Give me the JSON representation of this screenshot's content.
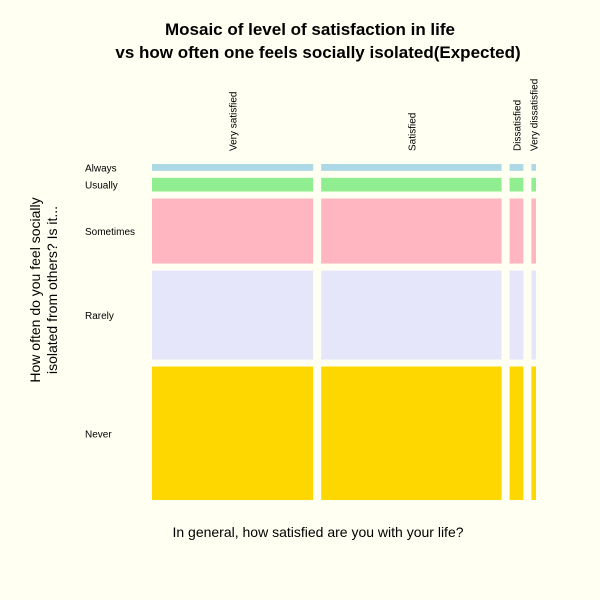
{
  "chart_data": {
    "type": "mosaic",
    "title": "Mosaic of level of satisfaction in life",
    "subtitle": "vs how often one feels socially isolated(Expected)",
    "xlabel": "In general, how satisfied are you with your life?",
    "ylabel_line1": "How often do you feel socially",
    "ylabel_line2": "isolated from others?  Is it...",
    "columns": [
      "Very satisfied",
      "Satisfied",
      "Dissatisfied",
      "Very dissatisfied"
    ],
    "column_share": [
      0.42,
      0.47,
      0.036,
      0.012
    ],
    "rows": [
      "Always",
      "Usually",
      "Sometimes",
      "Rarely",
      "Never"
    ],
    "row_share": [
      0.02,
      0.04,
      0.19,
      0.26,
      0.39
    ],
    "row_colors": [
      "#add8e6",
      "#90ee90",
      "#ffb6c1",
      "#e6e6fa",
      "#ffd700"
    ],
    "background": "#fffff2"
  }
}
